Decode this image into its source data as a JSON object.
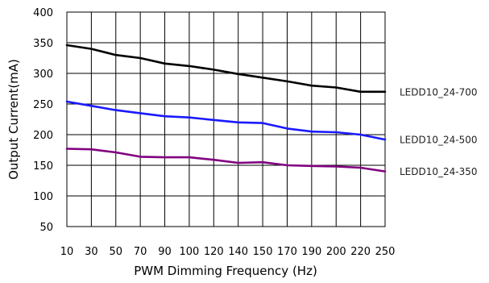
{
  "chart_data": {
    "type": "line",
    "title": "",
    "xlabel": "PWM Dimming Frequency (Hz)",
    "ylabel": "Output Current(mA)",
    "x": [
      10,
      30,
      50,
      70,
      90,
      100,
      120,
      140,
      150,
      170,
      190,
      200,
      220,
      250
    ],
    "x_ticks": [
      10,
      30,
      50,
      70,
      90,
      100,
      120,
      140,
      150,
      170,
      190,
      200,
      220,
      250
    ],
    "y_ticks": [
      50,
      100,
      150,
      200,
      250,
      300,
      350,
      400
    ],
    "ylim": [
      50,
      400
    ],
    "grid": true,
    "legend": "right (labels at line ends)",
    "series": [
      {
        "name": "LEDD10_24-700",
        "color": "#000000",
        "values": [
          346,
          340,
          330,
          325,
          316,
          312,
          306,
          299,
          293,
          287,
          280,
          277,
          270,
          270
        ]
      },
      {
        "name": "LEDD10_24-500",
        "color": "#1a1aff",
        "values": [
          254,
          247,
          240,
          235,
          230,
          228,
          224,
          220,
          219,
          210,
          205,
          204,
          200,
          192
        ]
      },
      {
        "name": "LEDD10_24-350",
        "color": "#800080",
        "values": [
          177,
          176,
          171,
          164,
          163,
          163,
          159,
          154,
          155,
          150,
          149,
          148,
          146,
          140
        ]
      }
    ]
  }
}
